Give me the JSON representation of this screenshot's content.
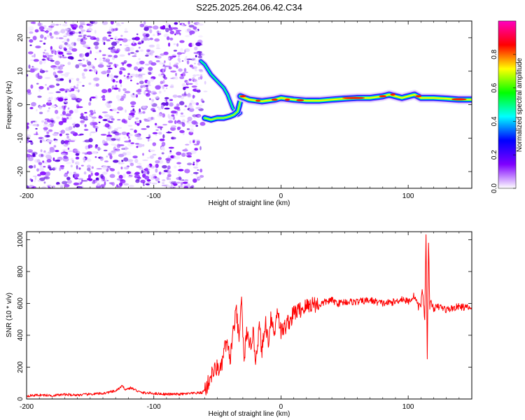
{
  "figure": {
    "title": "S225.2025.264.06.42.C34"
  },
  "chart_data": [
    {
      "type": "heatmap",
      "id": "spectrogram",
      "title": "S225.2025.264.06.42.C34",
      "xlabel": "Height of straight line (km)",
      "ylabel": "Frequency (Hz)",
      "xlim": [
        -200,
        150
      ],
      "ylim": [
        -25,
        25
      ],
      "xticks": [
        -200,
        -100,
        0,
        100
      ],
      "yticks": [
        -20,
        -10,
        0,
        10,
        20
      ],
      "colorbar": {
        "label": "Normalized spectral amplitude",
        "range": [
          0,
          1
        ],
        "ticks": [
          "0.0",
          "0.2",
          "0.4",
          "0.6",
          "0.8"
        ],
        "colormap": [
          "#ffffff",
          "#7f00ff",
          "#0000ff",
          "#00ffff",
          "#00ff00",
          "#ffff00",
          "#ff0000",
          "#ff00c0"
        ]
      },
      "noise_region": {
        "x_range": [
          -200,
          -62
        ],
        "y_range": [
          -25,
          25
        ]
      },
      "upper_branch": {
        "x": [
          -63,
          -60,
          -55,
          -50,
          -45,
          -42,
          -40,
          -38,
          -36,
          -34,
          -32
        ],
        "y": [
          13,
          12,
          9,
          7,
          5,
          3,
          1,
          -1,
          -2,
          -3,
          -2.5
        ]
      },
      "lower_branch": {
        "x": [
          -60,
          -55,
          -50,
          -45,
          -40,
          -37,
          -34,
          -32
        ],
        "y": [
          -4,
          -4.5,
          -4,
          -4,
          -3.5,
          -3,
          -2,
          1
        ]
      },
      "ridge": {
        "x": [
          -32,
          -25,
          -15,
          -5,
          0,
          10,
          20,
          30,
          40,
          50,
          60,
          70,
          80,
          85,
          90,
          95,
          100,
          105,
          110,
          115,
          120,
          130,
          140,
          150
        ],
        "y": [
          2.5,
          1.5,
          1.0,
          1.5,
          2.0,
          1.5,
          1.2,
          1.2,
          1.5,
          1.8,
          2.0,
          2.0,
          2.5,
          3.0,
          2.5,
          2.0,
          2.5,
          3.0,
          2.0,
          2.0,
          2.0,
          1.8,
          1.5,
          1.5
        ]
      }
    },
    {
      "type": "line",
      "id": "snr",
      "xlabel": "Height of straight line (km)",
      "ylabel": "SNR (10 * v/v)",
      "xlim": [
        -200,
        150
      ],
      "ylim": [
        0,
        1050
      ],
      "xticks": [
        -200,
        -100,
        0,
        100
      ],
      "yticks": [
        0,
        200,
        400,
        600,
        800,
        1000
      ],
      "color": "#ff0000",
      "x": [
        -200,
        -190,
        -180,
        -170,
        -160,
        -150,
        -140,
        -130,
        -125,
        -122,
        -118,
        -110,
        -100,
        -90,
        -80,
        -70,
        -62,
        -58,
        -55,
        -50,
        -47,
        -45,
        -43,
        -40,
        -38,
        -35,
        -33,
        -31,
        -29,
        -27,
        -25,
        -22,
        -20,
        -17,
        -15,
        -12,
        -10,
        -8,
        -5,
        -3,
        0,
        3,
        5,
        8,
        10,
        15,
        20,
        25,
        30,
        35,
        40,
        45,
        50,
        60,
        70,
        80,
        90,
        95,
        100,
        105,
        108,
        110,
        111,
        113,
        114,
        115,
        116,
        117,
        118,
        120,
        125,
        130,
        140,
        150
      ],
      "y": [
        20,
        25,
        22,
        28,
        25,
        30,
        35,
        50,
        80,
        60,
        70,
        40,
        35,
        30,
        30,
        35,
        40,
        80,
        150,
        200,
        180,
        300,
        350,
        250,
        400,
        550,
        350,
        650,
        200,
        450,
        300,
        420,
        250,
        450,
        300,
        480,
        350,
        520,
        400,
        580,
        420,
        450,
        480,
        500,
        540,
        560,
        580,
        600,
        590,
        610,
        620,
        600,
        610,
        610,
        620,
        600,
        610,
        630,
        610,
        650,
        580,
        590,
        700,
        500,
        1050,
        250,
        1000,
        580,
        600,
        570,
        580,
        560,
        580,
        570
      ]
    }
  ]
}
